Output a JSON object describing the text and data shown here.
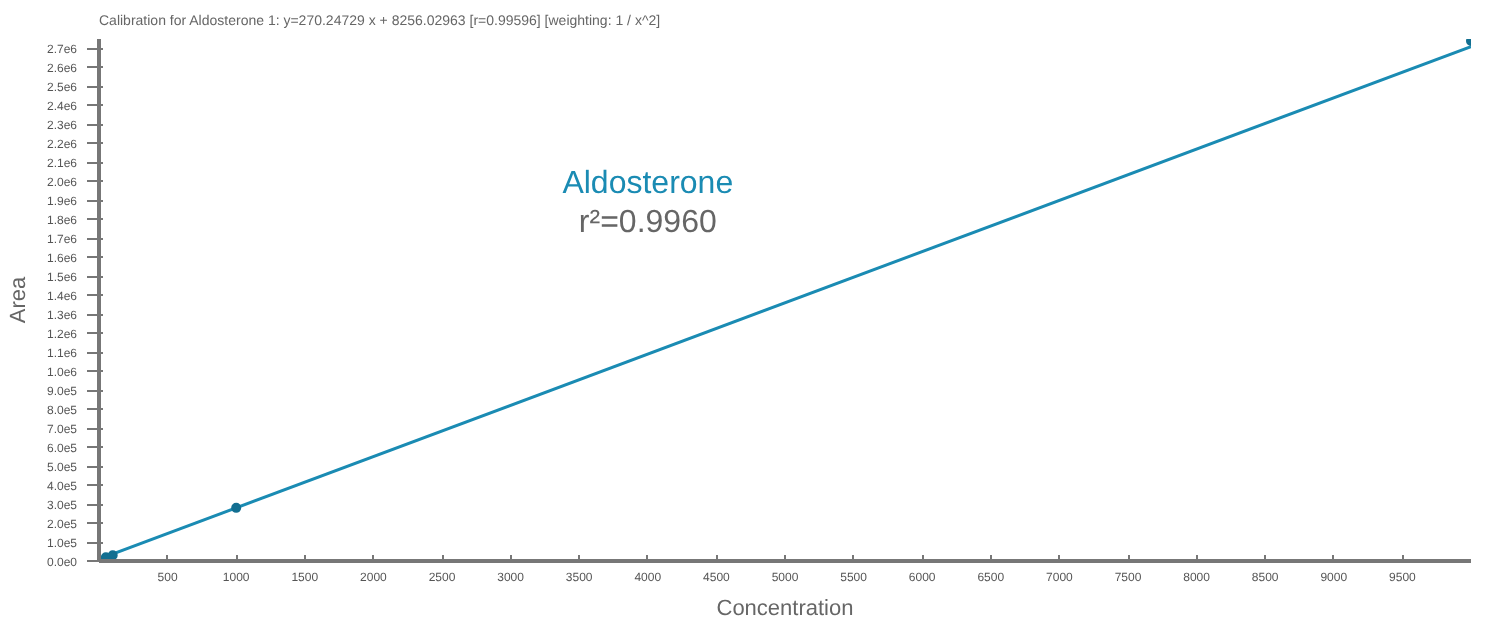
{
  "chart_data": {
    "type": "line",
    "title": "Calibration for Aldosterone 1: y=270.24729 x + 8256.02963 [r=0.99596] [weighting: 1 / x^2]",
    "xlabel": "Concentration",
    "ylabel": "Area",
    "annotations": [
      "Aldosterone",
      "r²=0.9960"
    ],
    "series": [
      {
        "color": "#1a8bb3",
        "x": [
          0,
          10000
        ],
        "values": [
          10000,
          2710000
        ]
      },
      {
        "type": "scatter",
        "marker": "circle",
        "color": "#136f91",
        "x": [
          50,
          100,
          1000,
          10000
        ],
        "values": [
          20000,
          30000,
          280000,
          2740000
        ]
      }
    ],
    "grid": false,
    "xlim": [
      0,
      10000
    ],
    "ylim": [
      0,
      2750000
    ],
    "xticks": [
      500,
      1000,
      1500,
      2000,
      2500,
      3000,
      3500,
      4000,
      4500,
      5000,
      5500,
      6000,
      6500,
      7000,
      7500,
      8000,
      8500,
      9000,
      9500
    ],
    "yticks": [
      {
        "value": 0,
        "label": "0.0e0"
      },
      {
        "value": 100000,
        "label": "1.0e5"
      },
      {
        "value": 200000,
        "label": "2.0e5"
      },
      {
        "value": 300000,
        "label": "3.0e5"
      },
      {
        "value": 400000,
        "label": "4.0e5"
      },
      {
        "value": 500000,
        "label": "5.0e5"
      },
      {
        "value": 600000,
        "label": "6.0e5"
      },
      {
        "value": 700000,
        "label": "7.0e5"
      },
      {
        "value": 800000,
        "label": "8.0e5"
      },
      {
        "value": 900000,
        "label": "9.0e5"
      },
      {
        "value": 1000000,
        "label": "1.0e6"
      },
      {
        "value": 1100000,
        "label": "1.1e6"
      },
      {
        "value": 1200000,
        "label": "1.2e6"
      },
      {
        "value": 1300000,
        "label": "1.3e6"
      },
      {
        "value": 1400000,
        "label": "1.4e6"
      },
      {
        "value": 1500000,
        "label": "1.5e6"
      },
      {
        "value": 1600000,
        "label": "1.6e6"
      },
      {
        "value": 1700000,
        "label": "1.7e6"
      },
      {
        "value": 1800000,
        "label": "1.8e6"
      },
      {
        "value": 1900000,
        "label": "1.9e6"
      },
      {
        "value": 2000000,
        "label": "2.0e6"
      },
      {
        "value": 2100000,
        "label": "2.1e6"
      },
      {
        "value": 2200000,
        "label": "2.2e6"
      },
      {
        "value": 2300000,
        "label": "2.3e6"
      },
      {
        "value": 2400000,
        "label": "2.4e6"
      },
      {
        "value": 2500000,
        "label": "2.5e6"
      },
      {
        "value": 2600000,
        "label": "2.6e6"
      },
      {
        "value": 2700000,
        "label": "2.7e6"
      }
    ]
  }
}
